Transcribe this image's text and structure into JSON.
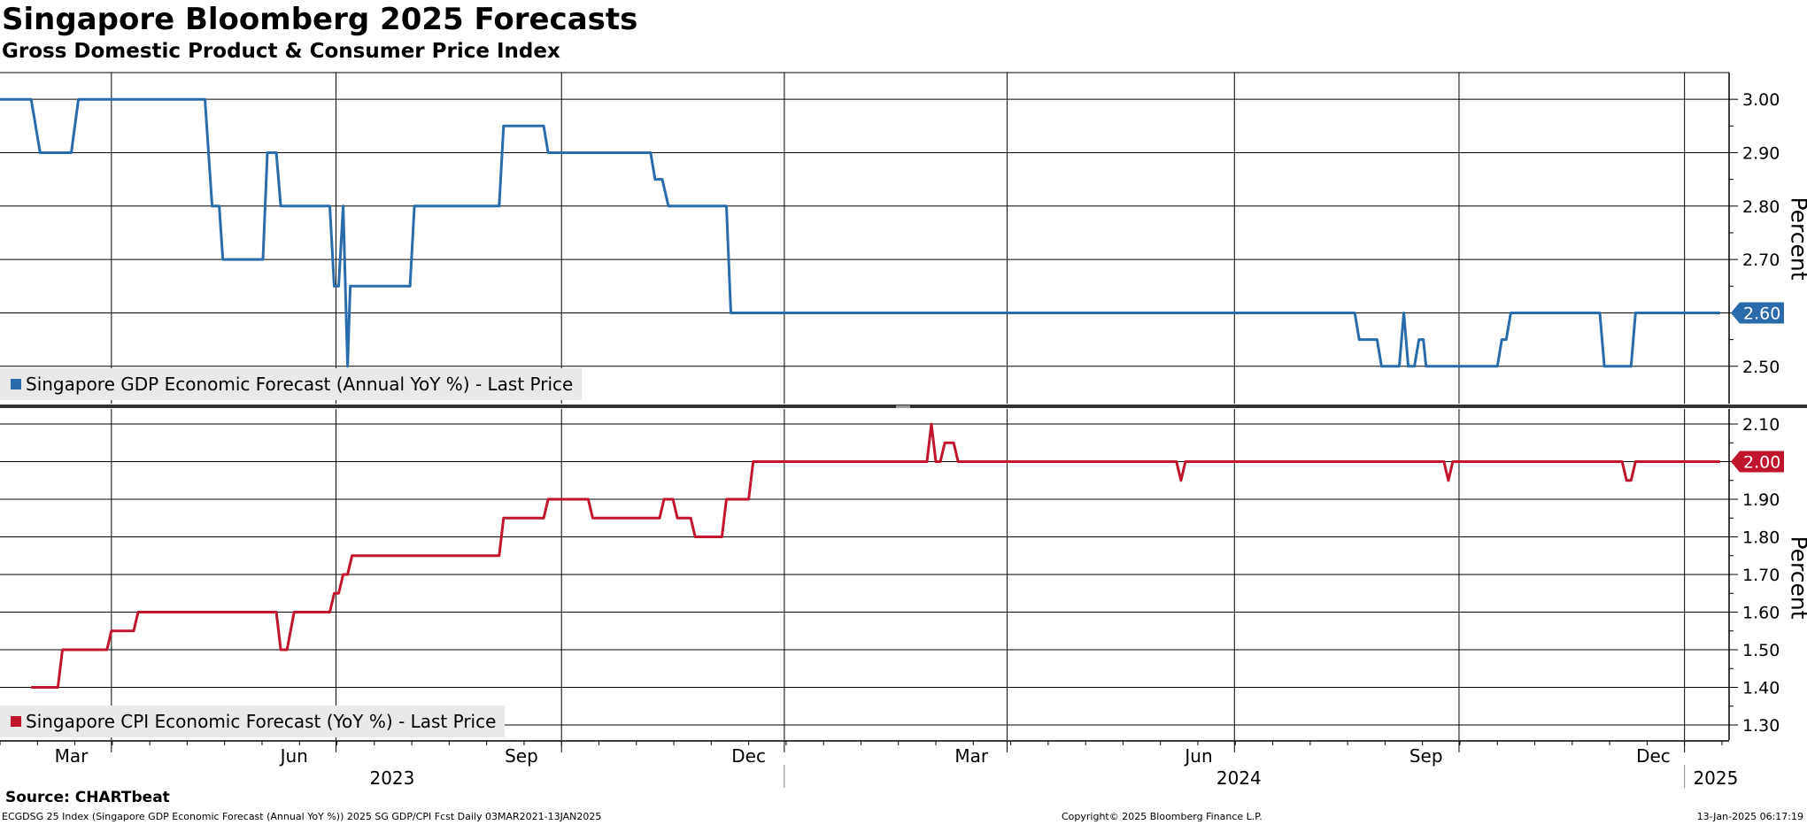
{
  "title": "Singapore Bloomberg 2025 Forecasts",
  "subtitle": "Gross Domestic Product & Consumer Price Index",
  "source": "Source: CHARTbeat",
  "description": "ECGDSG 25 Index (Singapore GDP Economic Forecast (Annual YoY %)) 2025 SG GDP/CPI Fcst  Daily 03MAR2021-13JAN2025",
  "copyright": "Copyright© 2025 Bloomberg Finance L.P.",
  "timestamp": "13-Jan-2025 06:17:19",
  "colors": {
    "gdp": "#2a6cab",
    "cpi": "#c0152d"
  },
  "chart_data": [
    {
      "type": "line",
      "name": "gdp",
      "legend": "Singapore GDP Economic Forecast (Annual YoY %) - Last Price",
      "ylabel": "Percent",
      "ylim": [
        2.43,
        3.05
      ],
      "yticks": [
        "3.00",
        "2.90",
        "2.80",
        "2.70",
        "2.60",
        "2.50"
      ],
      "last_value": "2.60",
      "points": [
        [
          0.0,
          3.0
        ],
        [
          0.35,
          3.0
        ],
        [
          0.45,
          2.9
        ],
        [
          0.8,
          2.9
        ],
        [
          0.88,
          3.0
        ],
        [
          2.3,
          3.0
        ],
        [
          2.38,
          2.8
        ],
        [
          2.46,
          2.8
        ],
        [
          2.5,
          2.7
        ],
        [
          2.95,
          2.7
        ],
        [
          3.0,
          2.9
        ],
        [
          3.1,
          2.9
        ],
        [
          3.15,
          2.8
        ],
        [
          3.7,
          2.8
        ],
        [
          3.75,
          2.65
        ],
        [
          3.8,
          2.65
        ],
        [
          3.85,
          2.8
        ],
        [
          3.9,
          2.5
        ],
        [
          3.93,
          2.65
        ],
        [
          4.6,
          2.65
        ],
        [
          4.65,
          2.8
        ],
        [
          5.6,
          2.8
        ],
        [
          5.65,
          2.95
        ],
        [
          6.1,
          2.95
        ],
        [
          6.15,
          2.9
        ],
        [
          7.3,
          2.9
        ],
        [
          7.35,
          2.85
        ],
        [
          7.43,
          2.85
        ],
        [
          7.5,
          2.8
        ],
        [
          8.15,
          2.8
        ],
        [
          8.2,
          2.6
        ],
        [
          15.2,
          2.6
        ],
        [
          15.25,
          2.55
        ],
        [
          15.45,
          2.55
        ],
        [
          15.5,
          2.5
        ],
        [
          15.7,
          2.5
        ],
        [
          15.75,
          2.6
        ],
        [
          15.8,
          2.5
        ],
        [
          15.87,
          2.5
        ],
        [
          15.92,
          2.55
        ],
        [
          15.97,
          2.55
        ],
        [
          16.0,
          2.5
        ],
        [
          16.8,
          2.5
        ],
        [
          16.85,
          2.55
        ],
        [
          16.9,
          2.55
        ],
        [
          16.95,
          2.6
        ],
        [
          17.95,
          2.6
        ],
        [
          18.0,
          2.5
        ],
        [
          18.3,
          2.5
        ],
        [
          18.35,
          2.6
        ],
        [
          19.3,
          2.6
        ]
      ]
    },
    {
      "type": "line",
      "name": "cpi",
      "legend": "Singapore CPI Economic Forecast (YoY %) - Last Price",
      "ylabel": "Percent",
      "ylim": [
        1.26,
        2.14
      ],
      "yticks": [
        "2.10",
        "2.00",
        "1.90",
        "1.80",
        "1.70",
        "1.60",
        "1.50",
        "1.40",
        "1.30"
      ],
      "last_value": "2.00",
      "points": [
        [
          0.35,
          1.4
        ],
        [
          0.65,
          1.4
        ],
        [
          0.7,
          1.5
        ],
        [
          1.2,
          1.5
        ],
        [
          1.25,
          1.55
        ],
        [
          1.5,
          1.55
        ],
        [
          1.55,
          1.6
        ],
        [
          3.1,
          1.6
        ],
        [
          3.15,
          1.5
        ],
        [
          3.22,
          1.5
        ],
        [
          3.3,
          1.6
        ],
        [
          3.7,
          1.6
        ],
        [
          3.75,
          1.65
        ],
        [
          3.8,
          1.65
        ],
        [
          3.85,
          1.7
        ],
        [
          3.9,
          1.7
        ],
        [
          3.95,
          1.75
        ],
        [
          5.6,
          1.75
        ],
        [
          5.65,
          1.85
        ],
        [
          6.1,
          1.85
        ],
        [
          6.15,
          1.9
        ],
        [
          6.6,
          1.9
        ],
        [
          6.65,
          1.85
        ],
        [
          7.4,
          1.85
        ],
        [
          7.45,
          1.9
        ],
        [
          7.55,
          1.9
        ],
        [
          7.6,
          1.85
        ],
        [
          7.75,
          1.85
        ],
        [
          7.8,
          1.8
        ],
        [
          8.1,
          1.8
        ],
        [
          8.15,
          1.9
        ],
        [
          8.4,
          1.9
        ],
        [
          8.45,
          2.0
        ],
        [
          10.4,
          2.0
        ],
        [
          10.45,
          2.1
        ],
        [
          10.5,
          2.0
        ],
        [
          10.55,
          2.0
        ],
        [
          10.6,
          2.05
        ],
        [
          10.7,
          2.05
        ],
        [
          10.75,
          2.0
        ],
        [
          13.2,
          2.0
        ],
        [
          13.25,
          1.95
        ],
        [
          13.3,
          2.0
        ],
        [
          16.2,
          2.0
        ],
        [
          16.25,
          1.95
        ],
        [
          16.3,
          2.0
        ],
        [
          18.2,
          2.0
        ],
        [
          18.25,
          1.95
        ],
        [
          18.3,
          1.95
        ],
        [
          18.35,
          2.0
        ],
        [
          19.3,
          2.0
        ]
      ]
    }
  ],
  "x_axis": {
    "range": [
      0,
      19.4
    ],
    "month_labels": [
      {
        "label": "Mar",
        "x": 0.8
      },
      {
        "label": "Jun",
        "x": 3.3
      },
      {
        "label": "Sep",
        "x": 5.85
      },
      {
        "label": "Dec",
        "x": 8.4
      },
      {
        "label": "Mar",
        "x": 10.9
      },
      {
        "label": "Jun",
        "x": 13.45
      },
      {
        "label": "Sep",
        "x": 16.0
      },
      {
        "label": "Dec",
        "x": 18.55
      }
    ],
    "year_labels": [
      {
        "label": "2023",
        "x": 4.4
      },
      {
        "label": "2024",
        "x": 13.9
      },
      {
        "label": "2025",
        "x": 19.25
      }
    ],
    "major_grid": [
      1.25,
      3.77,
      6.3,
      8.8,
      11.3,
      13.85,
      16.37,
      18.9
    ],
    "year_boundaries": [
      8.8,
      18.9
    ]
  }
}
